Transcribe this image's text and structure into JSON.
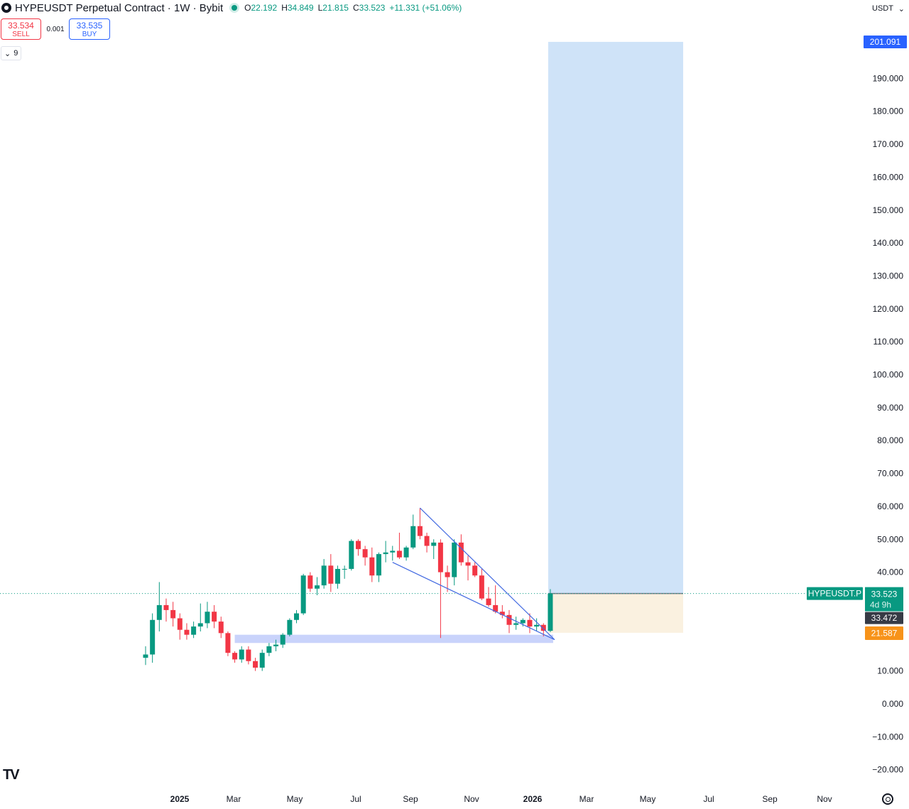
{
  "header": {
    "symbol_title": "HYPEUSDT Perpetual Contract · 1W · Bybit",
    "open_label": "O",
    "open": "22.192",
    "high_label": "H",
    "high": "34.849",
    "low_label": "L",
    "low": "21.815",
    "close_label": "C",
    "close": "33.523",
    "change": "+11.331 (+51.06%)"
  },
  "trade": {
    "sell_price": "33.534",
    "sell_label": "SELL",
    "spread": "0.001",
    "buy_price": "33.535",
    "buy_label": "BUY"
  },
  "indicators": {
    "count": "9"
  },
  "currency": "USDT",
  "colors": {
    "up": "#089981",
    "down": "#f23645",
    "profit_zone": "#cfe3f8",
    "loss_zone": "#faf1e0",
    "support_zone": "#c9d3fb",
    "trendline": "#4169e1",
    "target_label": "#2962ff",
    "stop_label": "#f7931a",
    "prev_close_label": "#363a45"
  },
  "chart_data": {
    "type": "candlestick",
    "timeframe": "1W",
    "y_axis": {
      "ticks": [
        190,
        180,
        170,
        160,
        150,
        140,
        130,
        120,
        110,
        100,
        90,
        80,
        70,
        60,
        50,
        40,
        10,
        0,
        -10,
        -20
      ],
      "tick_labels": [
        "190.000",
        "180.000",
        "170.000",
        "160.000",
        "150.000",
        "140.000",
        "130.000",
        "120.000",
        "110.000",
        "100.000",
        "90.000",
        "80.000",
        "70.000",
        "60.000",
        "50.000",
        "40.000",
        "10.000",
        "0.000",
        "−10.000",
        "−20.000"
      ],
      "range": [
        -25,
        210
      ]
    },
    "x_axis": {
      "labels": [
        {
          "text": "2025",
          "date": "2025-01",
          "bold": true
        },
        {
          "text": "Mar",
          "date": "2025-03",
          "bold": false
        },
        {
          "text": "May",
          "date": "2025-05",
          "bold": false
        },
        {
          "text": "Jul",
          "date": "2025-07",
          "bold": false
        },
        {
          "text": "Sep",
          "date": "2025-09",
          "bold": false
        },
        {
          "text": "Nov",
          "date": "2025-11",
          "bold": false
        },
        {
          "text": "2026",
          "date": "2026-01",
          "bold": true
        },
        {
          "text": "Mar",
          "date": "2026-03",
          "bold": false
        },
        {
          "text": "May",
          "date": "2026-05",
          "bold": false
        },
        {
          "text": "Jul",
          "date": "2026-07",
          "bold": false
        },
        {
          "text": "Sep",
          "date": "2026-09",
          "bold": false
        },
        {
          "text": "Nov",
          "date": "2026-11",
          "bold": false
        }
      ],
      "range": [
        "2024-09",
        "2026-12"
      ]
    },
    "candles": [
      {
        "o": 14.0,
        "h": 17.5,
        "l": 11.8,
        "c": 15.0
      },
      {
        "o": 15.0,
        "h": 27.5,
        "l": 12.5,
        "c": 25.5
      },
      {
        "o": 25.5,
        "h": 37.0,
        "l": 22.0,
        "c": 30.0
      },
      {
        "o": 30.0,
        "h": 32.0,
        "l": 25.0,
        "c": 28.5
      },
      {
        "o": 28.5,
        "h": 31.0,
        "l": 23.5,
        "c": 26.0
      },
      {
        "o": 26.0,
        "h": 27.5,
        "l": 19.5,
        "c": 22.5
      },
      {
        "o": 22.5,
        "h": 24.5,
        "l": 19.5,
        "c": 21.0
      },
      {
        "o": 21.0,
        "h": 25.0,
        "l": 20.0,
        "c": 23.5
      },
      {
        "o": 23.5,
        "h": 30.5,
        "l": 22.0,
        "c": 24.5
      },
      {
        "o": 24.5,
        "h": 31.0,
        "l": 23.0,
        "c": 28.0
      },
      {
        "o": 28.0,
        "h": 30.0,
        "l": 23.0,
        "c": 25.0
      },
      {
        "o": 25.0,
        "h": 26.5,
        "l": 20.0,
        "c": 21.5
      },
      {
        "o": 21.5,
        "h": 22.0,
        "l": 14.5,
        "c": 15.5
      },
      {
        "o": 15.5,
        "h": 16.0,
        "l": 12.5,
        "c": 13.5
      },
      {
        "o": 13.5,
        "h": 17.5,
        "l": 12.5,
        "c": 16.5
      },
      {
        "o": 16.5,
        "h": 17.5,
        "l": 12.0,
        "c": 13.0
      },
      {
        "o": 13.0,
        "h": 14.0,
        "l": 10.0,
        "c": 11.0
      },
      {
        "o": 11.0,
        "h": 16.5,
        "l": 10.0,
        "c": 15.5
      },
      {
        "o": 15.5,
        "h": 18.5,
        "l": 14.5,
        "c": 17.5
      },
      {
        "o": 17.5,
        "h": 19.5,
        "l": 16.0,
        "c": 18.0
      },
      {
        "o": 18.0,
        "h": 21.5,
        "l": 17.0,
        "c": 21.0
      },
      {
        "o": 21.0,
        "h": 26.0,
        "l": 20.5,
        "c": 25.5
      },
      {
        "o": 25.5,
        "h": 28.5,
        "l": 24.5,
        "c": 27.5
      },
      {
        "o": 27.5,
        "h": 39.5,
        "l": 27.0,
        "c": 39.0
      },
      {
        "o": 39.0,
        "h": 40.0,
        "l": 34.0,
        "c": 35.0
      },
      {
        "o": 35.0,
        "h": 38.5,
        "l": 33.0,
        "c": 36.0
      },
      {
        "o": 36.0,
        "h": 44.0,
        "l": 35.0,
        "c": 42.0
      },
      {
        "o": 42.0,
        "h": 45.5,
        "l": 34.0,
        "c": 36.5
      },
      {
        "o": 36.5,
        "h": 42.0,
        "l": 35.0,
        "c": 41.0
      },
      {
        "o": 41.0,
        "h": 42.0,
        "l": 38.0,
        "c": 41.0
      },
      {
        "o": 41.0,
        "h": 50.0,
        "l": 40.5,
        "c": 49.5
      },
      {
        "o": 49.5,
        "h": 50.0,
        "l": 45.0,
        "c": 47.0
      },
      {
        "o": 47.0,
        "h": 48.0,
        "l": 42.0,
        "c": 44.5
      },
      {
        "o": 44.5,
        "h": 47.5,
        "l": 37.0,
        "c": 39.0
      },
      {
        "o": 39.0,
        "h": 46.0,
        "l": 37.0,
        "c": 45.5
      },
      {
        "o": 45.5,
        "h": 49.5,
        "l": 43.0,
        "c": 46.0
      },
      {
        "o": 46.0,
        "h": 48.0,
        "l": 43.5,
        "c": 46.5
      },
      {
        "o": 46.5,
        "h": 52.0,
        "l": 44.0,
        "c": 44.5
      },
      {
        "o": 44.5,
        "h": 48.0,
        "l": 43.5,
        "c": 47.5
      },
      {
        "o": 47.5,
        "h": 57.5,
        "l": 47.0,
        "c": 54.0
      },
      {
        "o": 54.0,
        "h": 59.5,
        "l": 50.0,
        "c": 51.0
      },
      {
        "o": 51.0,
        "h": 52.0,
        "l": 46.0,
        "c": 48.0
      },
      {
        "o": 48.0,
        "h": 50.0,
        "l": 44.0,
        "c": 49.0
      },
      {
        "o": 49.0,
        "h": 50.0,
        "l": 20.0,
        "c": 40.0
      },
      {
        "o": 40.0,
        "h": 42.0,
        "l": 34.0,
        "c": 38.5
      },
      {
        "o": 38.5,
        "h": 50.0,
        "l": 36.0,
        "c": 49.0
      },
      {
        "o": 49.0,
        "h": 51.5,
        "l": 42.0,
        "c": 43.0
      },
      {
        "o": 43.0,
        "h": 45.0,
        "l": 37.5,
        "c": 42.0
      },
      {
        "o": 42.0,
        "h": 43.0,
        "l": 38.5,
        "c": 39.0
      },
      {
        "o": 39.0,
        "h": 41.0,
        "l": 31.5,
        "c": 32.0
      },
      {
        "o": 32.0,
        "h": 35.5,
        "l": 29.5,
        "c": 30.0
      },
      {
        "o": 30.0,
        "h": 36.0,
        "l": 27.5,
        "c": 28.0
      },
      {
        "o": 28.0,
        "h": 30.0,
        "l": 26.0,
        "c": 27.0
      },
      {
        "o": 27.0,
        "h": 28.5,
        "l": 21.5,
        "c": 24.0
      },
      {
        "o": 24.0,
        "h": 26.5,
        "l": 22.5,
        "c": 24.5
      },
      {
        "o": 24.5,
        "h": 26.0,
        "l": 23.5,
        "c": 25.5
      },
      {
        "o": 25.5,
        "h": 27.5,
        "l": 21.5,
        "c": 23.5
      },
      {
        "o": 23.5,
        "h": 26.0,
        "l": 22.0,
        "c": 24.0
      },
      {
        "o": 24.0,
        "h": 24.5,
        "l": 20.5,
        "c": 22.192
      },
      {
        "o": 22.192,
        "h": 34.849,
        "l": 21.815,
        "c": 33.523
      }
    ],
    "support_zone": {
      "bottom": 18.5,
      "top": 21.0,
      "start_index": 13,
      "end_index": 59
    },
    "trendlines": [
      {
        "from_index": 40,
        "from_price": 59.5,
        "to_index": 59,
        "to_price": 19.5
      },
      {
        "from_index": 36,
        "from_price": 43.0,
        "to_index": 59,
        "to_price": 19.5
      }
    ],
    "long_position": {
      "entry": 33.523,
      "target": 201.091,
      "stop": 21.587,
      "start_index": 59,
      "end_index": 83
    },
    "price_labels": {
      "target": "201.091",
      "symbol": "HYPEUSDT.P",
      "last": "33.523",
      "countdown": "4d 9h",
      "prev": "33.472",
      "stop": "21.587"
    }
  }
}
